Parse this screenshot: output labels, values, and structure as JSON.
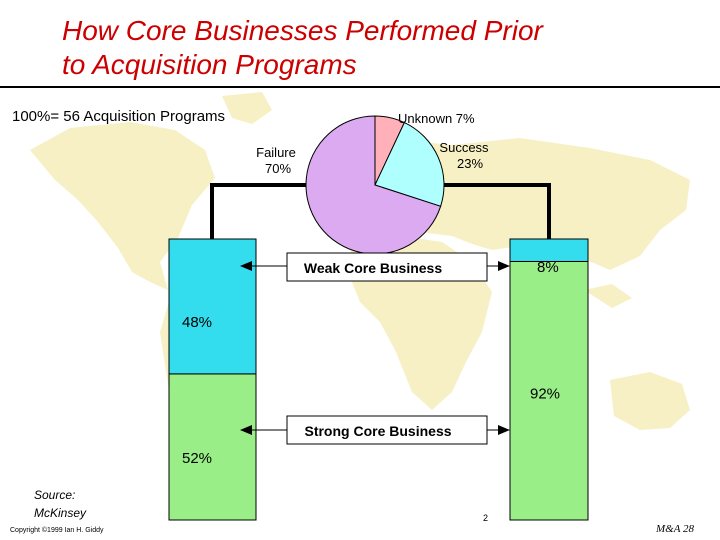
{
  "slide": {
    "title_line1": "How Core Businesses Performed Prior",
    "title_line2": "to Acquisition Programs",
    "subtitle": "100%= 56 Acquisition Programs",
    "source_line1": "Source:",
    "source_line2": "McKinsey",
    "copyright": "Copyright ©1999 Ian H. Giddy",
    "page_number": "2",
    "slide_id": "M&A 28"
  },
  "colors": {
    "title": "#cc0000",
    "cyan": "#33ddee",
    "light_green": "#99ee88",
    "pie_unknown": "#ffb0b8",
    "pie_success": "#b0ffff",
    "pie_failure": "#dcaaf0",
    "map": "#f6f0c4"
  },
  "chart_data": [
    {
      "type": "pie",
      "title": "",
      "slices": [
        {
          "label": "Unknown",
          "value": 7,
          "display": "Unknown 7%"
        },
        {
          "label": "Success",
          "value": 23,
          "display_line1": "Success",
          "display_line2": "23%"
        },
        {
          "label": "Failure",
          "value": 70,
          "display_line1": "Failure",
          "display_line2": "70%"
        }
      ]
    },
    {
      "type": "bar",
      "stacked": true,
      "percent": true,
      "categories": [
        "Failure",
        "Success"
      ],
      "series": [
        {
          "name": "Strong Core Business",
          "values": [
            52,
            92
          ],
          "labels": [
            "52%",
            "92%"
          ]
        },
        {
          "name": "Weak Core Business",
          "values": [
            48,
            8
          ],
          "labels": [
            "48%",
            "8%"
          ]
        }
      ],
      "ylim": [
        0,
        100
      ]
    }
  ]
}
